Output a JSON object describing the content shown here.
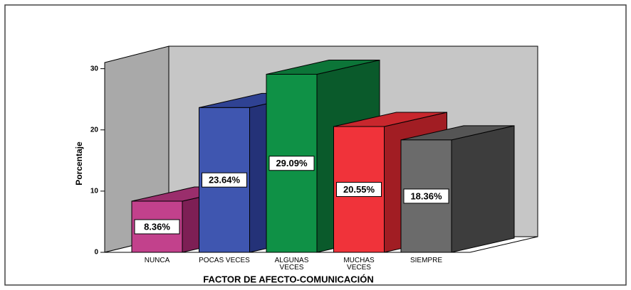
{
  "chart_data": {
    "type": "bar3d",
    "x_label": "FACTOR DE AFECTO-COMUNICACIÓN",
    "y_label": "Porcentaje",
    "categories": [
      "NUNCA",
      "POCAS VECES",
      "ALGUNAS VECES",
      "MUCHAS VECES",
      "SIEMPRE"
    ],
    "values": [
      8.36,
      23.64,
      29.09,
      20.55,
      18.36
    ],
    "value_labels": [
      "8.36%",
      "23.64%",
      "29.09%",
      "20.55%",
      "18.36%"
    ],
    "colors": [
      "#c2418c",
      "#3f56b0",
      "#0f9146",
      "#f0333a",
      "#6b6b6b"
    ],
    "side_colors": [
      "#7d1f55",
      "#243278",
      "#0a5a2b",
      "#a11d23",
      "#3d3d3d"
    ],
    "top_colors": [
      "#9a2e6c",
      "#2f4293",
      "#0c7538",
      "#c8272d",
      "#555555"
    ],
    "ylim": [
      0,
      31
    ],
    "yticks": [
      0,
      10,
      20,
      30
    ],
    "grid": false
  }
}
